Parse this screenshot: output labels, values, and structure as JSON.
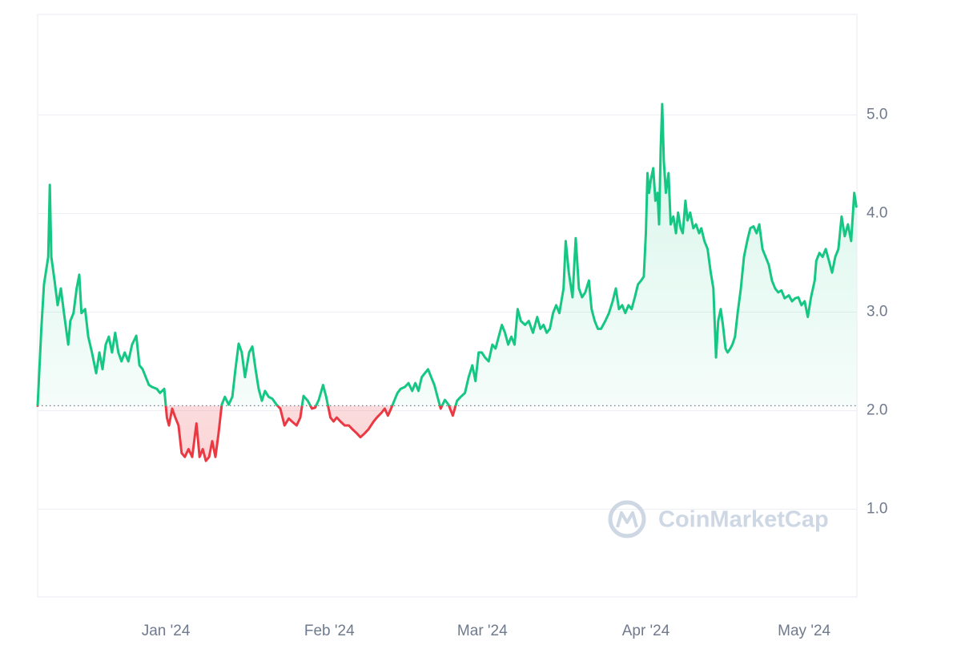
{
  "chart_data": {
    "type": "line",
    "watermark": "CoinMarketCap",
    "up_color": "#16c784",
    "down_color": "#ea3943",
    "grid": true,
    "xlim": [
      -24.3,
      131
    ],
    "ylim": [
      0.11,
      6.02
    ],
    "xticks": [
      {
        "value": 0,
        "label": "Jan '24"
      },
      {
        "value": 31,
        "label": "Feb '24"
      },
      {
        "value": 60,
        "label": "Mar '24"
      },
      {
        "value": 91,
        "label": "Apr '24"
      },
      {
        "value": 121,
        "label": "May '24"
      }
    ],
    "yticks": [
      {
        "value": 1,
        "label": "1.0"
      },
      {
        "value": 2,
        "label": "2.0"
      },
      {
        "value": 3,
        "label": "3.0"
      },
      {
        "value": 4,
        "label": "4.0"
      },
      {
        "value": 5,
        "label": "5.0"
      }
    ],
    "x": [
      -24.3,
      -23.6,
      -23.1,
      -22.3,
      -22.0,
      -21.7,
      -21.1,
      -20.5,
      -19.9,
      -19.3,
      -18.5,
      -18.1,
      -17.5,
      -16.9,
      -16.4,
      -16.0,
      -15.3,
      -14.7,
      -14.0,
      -13.2,
      -12.6,
      -12.0,
      -11.4,
      -10.8,
      -10.2,
      -9.6,
      -9.0,
      -8.4,
      -7.8,
      -7.1,
      -6.4,
      -5.6,
      -5.0,
      -4.4,
      -3.8,
      -3.2,
      -2.6,
      -1.7,
      -1.1,
      -0.3,
      0.2,
      0.6,
      1.2,
      1.8,
      2.4,
      3.0,
      3.6,
      4.3,
      5.0,
      5.8,
      6.4,
      7.0,
      7.6,
      8.2,
      8.8,
      9.4,
      10.0,
      10.6,
      11.2,
      11.9,
      12.6,
      13.2,
      13.8,
      14.4,
      15.0,
      15.8,
      16.4,
      17.0,
      17.6,
      18.2,
      18.8,
      19.5,
      20.2,
      21.0,
      21.7,
      22.5,
      23.3,
      23.9,
      24.8,
      25.5,
      26.1,
      26.9,
      27.7,
      28.3,
      29.0,
      29.8,
      30.4,
      31.2,
      31.8,
      32.4,
      33.1,
      33.9,
      34.7,
      35.4,
      36.2,
      36.9,
      37.7,
      38.4,
      39.4,
      40.0,
      40.9,
      41.5,
      42.1,
      42.7,
      43.3,
      43.9,
      44.5,
      45.3,
      46.0,
      46.7,
      47.3,
      47.9,
      48.5,
      49.1,
      49.7,
      50.3,
      50.9,
      51.5,
      52.1,
      52.9,
      53.6,
      54.4,
      55.2,
      55.9,
      56.7,
      57.4,
      58.1,
      58.7,
      59.3,
      59.9,
      60.5,
      61.2,
      61.9,
      62.5,
      63.1,
      63.7,
      64.3,
      64.9,
      65.5,
      66.1,
      66.7,
      67.3,
      68.1,
      68.8,
      69.6,
      70.4,
      71.0,
      71.6,
      72.2,
      72.8,
      73.4,
      74.0,
      74.6,
      75.4,
      75.8,
      76.4,
      77.1,
      77.7,
      78.3,
      78.9,
      79.5,
      80.2,
      80.7,
      81.3,
      81.9,
      82.5,
      83.3,
      84.0,
      84.7,
      85.3,
      85.9,
      86.5,
      87.1,
      87.7,
      88.3,
      88.9,
      89.5,
      90.1,
      90.6,
      91.0,
      91.3,
      91.6,
      91.9,
      92.4,
      92.8,
      93.2,
      93.5,
      93.8,
      94.1,
      94.4,
      94.8,
      95.3,
      95.7,
      96.2,
      96.7,
      97.1,
      97.6,
      98.0,
      98.5,
      98.9,
      99.4,
      100.0,
      100.5,
      101.1,
      101.5,
      102.1,
      102.7,
      103.3,
      103.8,
      104.3,
      104.7,
      105.2,
      105.6,
      106.1,
      106.5,
      107.0,
      107.4,
      107.9,
      108.4,
      109.0,
      109.6,
      110.2,
      110.8,
      111.4,
      112.0,
      112.5,
      113.1,
      113.7,
      114.3,
      114.9,
      115.5,
      116.1,
      116.7,
      117.3,
      118.1,
      118.7,
      119.3,
      119.9,
      120.5,
      121.1,
      121.7,
      122.3,
      123.0,
      123.3,
      123.9,
      124.5,
      125.1,
      125.7,
      126.3,
      126.9,
      127.5,
      128.1,
      128.7,
      129.3,
      129.9,
      130.5,
      130.9
    ],
    "values": [
      2.05,
      2.83,
      3.28,
      3.56,
      4.29,
      3.56,
      3.32,
      3.07,
      3.24,
      2.99,
      2.67,
      2.91,
      2.99,
      3.24,
      3.38,
      2.99,
      3.03,
      2.75,
      2.59,
      2.38,
      2.59,
      2.42,
      2.67,
      2.75,
      2.59,
      2.79,
      2.59,
      2.5,
      2.59,
      2.5,
      2.67,
      2.76,
      2.46,
      2.42,
      2.34,
      2.26,
      2.24,
      2.22,
      2.18,
      2.22,
      1.93,
      1.85,
      2.02,
      1.93,
      1.85,
      1.57,
      1.53,
      1.61,
      1.53,
      1.87,
      1.53,
      1.61,
      1.49,
      1.53,
      1.69,
      1.53,
      1.77,
      2.06,
      2.14,
      2.06,
      2.14,
      2.42,
      2.68,
      2.59,
      2.34,
      2.59,
      2.65,
      2.42,
      2.22,
      2.1,
      2.2,
      2.14,
      2.12,
      2.06,
      2.02,
      1.85,
      1.92,
      1.89,
      1.85,
      1.93,
      2.15,
      2.1,
      2.02,
      2.03,
      2.11,
      2.26,
      2.14,
      1.93,
      1.89,
      1.93,
      1.89,
      1.85,
      1.85,
      1.81,
      1.77,
      1.73,
      1.77,
      1.81,
      1.89,
      1.93,
      1.98,
      2.02,
      1.95,
      2.02,
      2.1,
      2.18,
      2.22,
      2.24,
      2.28,
      2.2,
      2.28,
      2.2,
      2.34,
      2.38,
      2.42,
      2.34,
      2.26,
      2.14,
      2.02,
      2.11,
      2.06,
      1.95,
      2.1,
      2.14,
      2.18,
      2.34,
      2.46,
      2.3,
      2.59,
      2.59,
      2.54,
      2.5,
      2.67,
      2.63,
      2.75,
      2.87,
      2.79,
      2.67,
      2.75,
      2.67,
      3.03,
      2.91,
      2.87,
      2.91,
      2.79,
      2.95,
      2.83,
      2.87,
      2.79,
      2.83,
      2.99,
      3.07,
      2.99,
      3.24,
      3.72,
      3.4,
      3.15,
      3.75,
      3.24,
      3.15,
      3.2,
      3.32,
      3.03,
      2.91,
      2.83,
      2.83,
      2.91,
      2.99,
      3.11,
      3.24,
      3.03,
      3.07,
      2.99,
      3.07,
      3.03,
      3.15,
      3.28,
      3.32,
      3.36,
      3.8,
      4.41,
      4.21,
      4.33,
      4.46,
      4.13,
      4.21,
      3.89,
      4.66,
      5.11,
      4.54,
      4.21,
      4.41,
      3.89,
      3.97,
      3.8,
      4.01,
      3.85,
      3.8,
      4.13,
      3.93,
      4.01,
      3.85,
      3.89,
      3.8,
      3.85,
      3.72,
      3.64,
      3.4,
      3.24,
      2.54,
      2.91,
      3.03,
      2.87,
      2.63,
      2.59,
      2.63,
      2.67,
      2.75,
      2.99,
      3.24,
      3.56,
      3.72,
      3.85,
      3.87,
      3.8,
      3.89,
      3.64,
      3.56,
      3.48,
      3.32,
      3.24,
      3.2,
      3.22,
      3.14,
      3.17,
      3.11,
      3.14,
      3.15,
      3.07,
      3.11,
      2.95,
      3.15,
      3.32,
      3.52,
      3.6,
      3.56,
      3.64,
      3.52,
      3.4,
      3.56,
      3.64,
      3.97,
      3.77,
      3.89,
      3.72,
      4.21,
      4.07
    ]
  }
}
